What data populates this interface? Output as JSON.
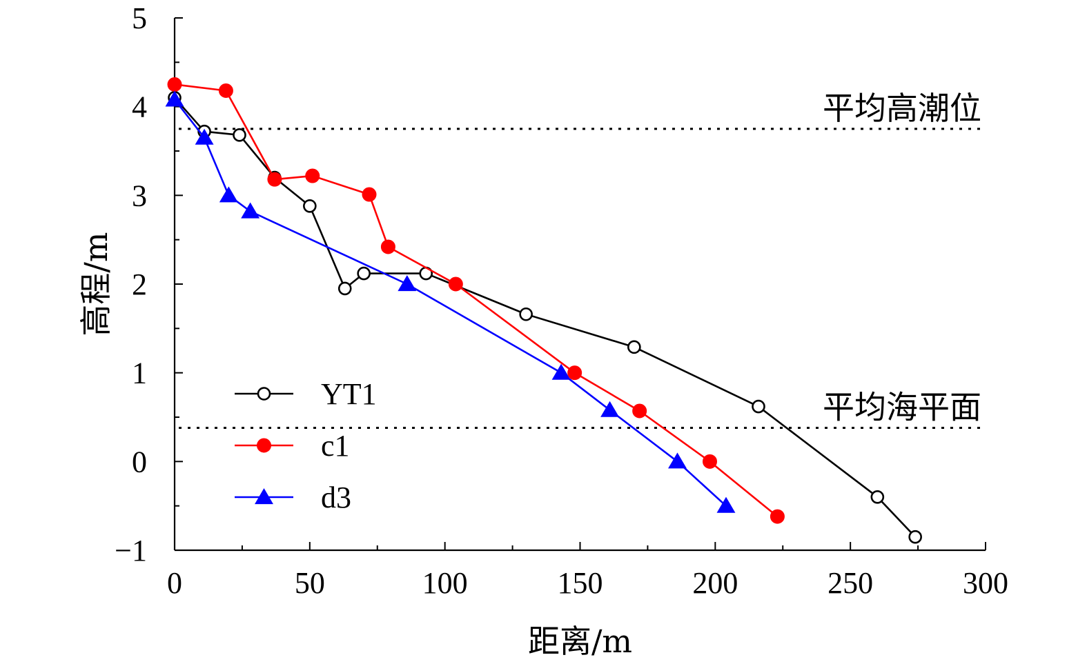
{
  "chart_data": {
    "type": "line",
    "xlabel": "距离/m",
    "ylabel": "高程/m",
    "xlim": [
      0,
      300
    ],
    "ylim": [
      -1,
      5
    ],
    "xticks": [
      0,
      50,
      100,
      150,
      200,
      250,
      300
    ],
    "xtick_labels": [
      "0",
      "50",
      "100",
      "150",
      "200",
      "250",
      "300"
    ],
    "yticks": [
      -1,
      0,
      1,
      2,
      3,
      4,
      5
    ],
    "ytick_labels": [
      "−1",
      "0",
      "1",
      "2",
      "3",
      "4",
      "5"
    ],
    "grid": false,
    "legend": "bottom-left",
    "reference_lines": [
      {
        "label": "平均高潮位",
        "y": 3.75
      },
      {
        "label": "平均海平面",
        "y": 0.38
      }
    ],
    "series": [
      {
        "name": "YT1",
        "color": "#000000",
        "marker": "open-circle",
        "points": [
          [
            0,
            4.1
          ],
          [
            11,
            3.72
          ],
          [
            24,
            3.68
          ],
          [
            37,
            3.2
          ],
          [
            50,
            2.88
          ],
          [
            63,
            1.95
          ],
          [
            70,
            2.12
          ],
          [
            93,
            2.12
          ],
          [
            130,
            1.66
          ],
          [
            170,
            1.29
          ],
          [
            216,
            0.62
          ],
          [
            260,
            -0.4
          ],
          [
            274,
            -0.85
          ]
        ]
      },
      {
        "name": "c1",
        "color": "#ff0000",
        "marker": "filled-circle",
        "points": [
          [
            0,
            4.25
          ],
          [
            19,
            4.18
          ],
          [
            37,
            3.18
          ],
          [
            51,
            3.22
          ],
          [
            72,
            3.01
          ],
          [
            79,
            2.42
          ],
          [
            104,
            2.0
          ],
          [
            148,
            1.0
          ],
          [
            172,
            0.57
          ],
          [
            198,
            0.0
          ],
          [
            223,
            -0.62
          ]
        ]
      },
      {
        "name": "d3",
        "color": "#0000ff",
        "marker": "filled-triangle",
        "points": [
          [
            0,
            4.08
          ],
          [
            11,
            3.65
          ],
          [
            20,
            3.0
          ],
          [
            28,
            2.82
          ],
          [
            86,
            2.0
          ],
          [
            143,
            1.0
          ],
          [
            161,
            0.58
          ],
          [
            186,
            0.0
          ],
          [
            204,
            -0.5
          ]
        ]
      }
    ]
  }
}
